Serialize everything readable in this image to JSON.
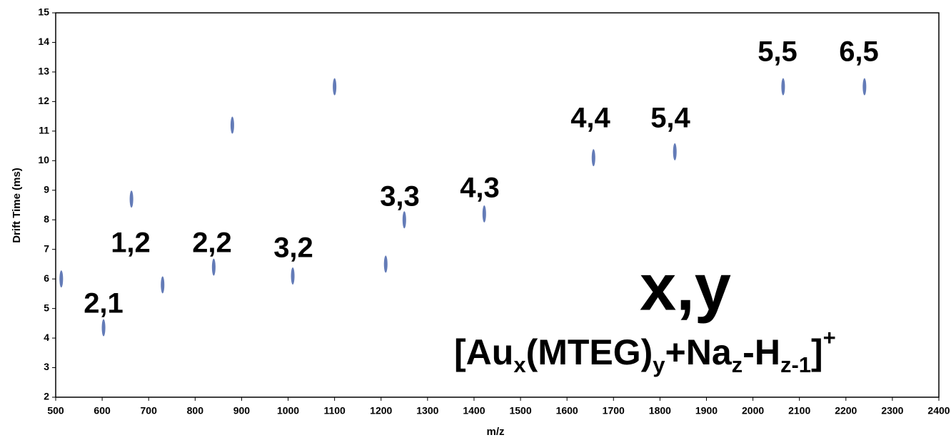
{
  "chart_data": {
    "type": "scatter",
    "x_label": "m/z",
    "y_label": "Drift Time (ms)",
    "xlim": [
      500,
      2400
    ],
    "xticks": [
      500,
      600,
      700,
      800,
      900,
      1000,
      1100,
      1200,
      1300,
      1400,
      1500,
      1600,
      1700,
      1800,
      1900,
      2000,
      2100,
      2200,
      2300,
      2400
    ],
    "ylim": [
      2,
      15
    ],
    "yticks": [
      2,
      3,
      4,
      5,
      6,
      7,
      8,
      9,
      10,
      11,
      12,
      13,
      14,
      15
    ],
    "color": "#2f4f9f",
    "x": [
      512,
      603,
      663,
      730,
      840,
      880,
      1010,
      1100,
      1210,
      1250,
      1422,
      1657,
      1832,
      2065,
      2240
    ],
    "values": [
      6.0,
      4.35,
      8.7,
      5.8,
      6.4,
      11.2,
      6.1,
      12.5,
      6.5,
      8.0,
      8.2,
      10.1,
      10.3,
      12.5,
      12.5
    ],
    "annotations": [
      "2,1",
      "1,2",
      "2,2",
      "3,2",
      "3,3",
      "4,3",
      "4,4",
      "5,4",
      "5,5",
      "6,5"
    ],
    "legend_title": "x,y",
    "formula": [
      "[Au",
      "x",
      "(MTEG)",
      "y",
      "+Na",
      "z",
      "-H",
      "z-1",
      "]",
      "+"
    ]
  }
}
